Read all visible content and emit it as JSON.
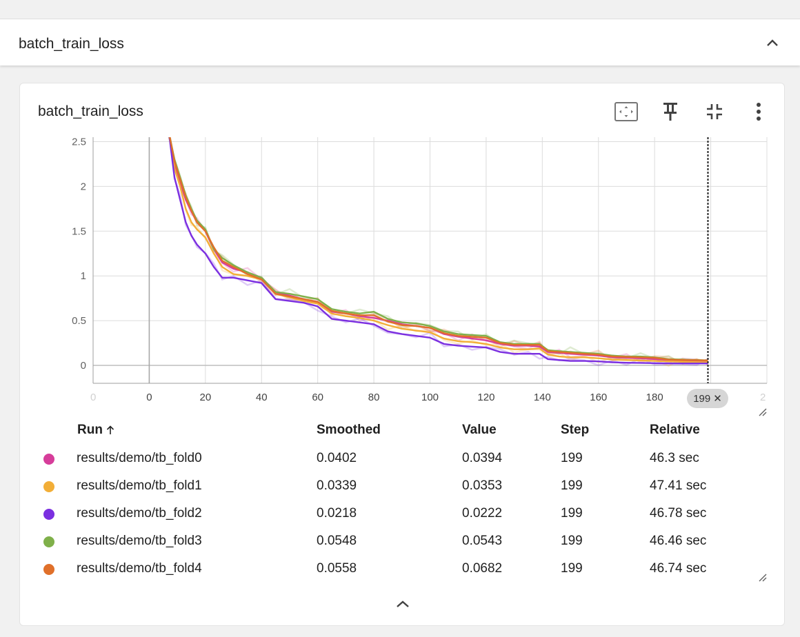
{
  "section": {
    "title": "batch_train_loss"
  },
  "card": {
    "title": "batch_train_loss",
    "toolbar_icons": [
      "fit-to-data-icon",
      "pin-icon",
      "collapse-chart-icon",
      "more-vert-icon"
    ]
  },
  "chart_data": {
    "type": "line",
    "xlim": [
      -20,
      220
    ],
    "ylim": [
      -0.2,
      2.55
    ],
    "x_ticks": [
      0,
      20,
      40,
      60,
      80,
      100,
      120,
      140,
      160,
      180
    ],
    "x_ticks_faint": [
      "0",
      "2"
    ],
    "y_ticks": [
      0,
      0.5,
      1,
      1.5,
      2,
      2.5
    ],
    "y_tick_labels": [
      "0",
      "0.5",
      "1",
      "1.5",
      "2",
      "2.5"
    ],
    "grid": true,
    "cursor_step": 199,
    "cursor_label": "199",
    "x_samples": [
      7,
      9,
      11,
      13,
      15,
      17,
      20,
      23,
      26,
      30,
      35,
      40,
      45,
      50,
      55,
      60,
      65,
      70,
      75,
      80,
      85,
      90,
      95,
      100,
      105,
      110,
      115,
      120,
      125,
      130,
      135,
      139,
      142,
      146,
      150,
      155,
      160,
      165,
      170,
      175,
      180,
      185,
      190,
      195,
      199
    ],
    "series": [
      {
        "name": "results/demo/tb_fold0",
        "color": "#d63d9a",
        "values": [
          2.6,
          2.25,
          2.05,
          1.85,
          1.72,
          1.6,
          1.5,
          1.3,
          1.15,
          1.08,
          1.04,
          0.98,
          0.82,
          0.78,
          0.74,
          0.7,
          0.6,
          0.58,
          0.55,
          0.53,
          0.5,
          0.46,
          0.44,
          0.42,
          0.35,
          0.32,
          0.3,
          0.28,
          0.24,
          0.22,
          0.22,
          0.21,
          0.15,
          0.14,
          0.13,
          0.12,
          0.11,
          0.09,
          0.085,
          0.08,
          0.07,
          0.06,
          0.05,
          0.045,
          0.04
        ]
      },
      {
        "name": "results/demo/tb_fold1",
        "color": "#f2ae37",
        "values": [
          2.6,
          2.2,
          2.0,
          1.75,
          1.6,
          1.52,
          1.43,
          1.25,
          1.1,
          1.02,
          1.0,
          0.96,
          0.8,
          0.76,
          0.72,
          0.69,
          0.58,
          0.55,
          0.53,
          0.5,
          0.45,
          0.41,
          0.39,
          0.37,
          0.3,
          0.27,
          0.26,
          0.24,
          0.2,
          0.18,
          0.18,
          0.19,
          0.12,
          0.1,
          0.09,
          0.09,
          0.08,
          0.065,
          0.06,
          0.055,
          0.05,
          0.045,
          0.04,
          0.036,
          0.034
        ]
      },
      {
        "name": "results/demo/tb_fold2",
        "color": "#7b2fe0",
        "values": [
          2.6,
          2.1,
          1.85,
          1.6,
          1.45,
          1.35,
          1.25,
          1.1,
          0.98,
          0.98,
          0.95,
          0.92,
          0.74,
          0.72,
          0.7,
          0.66,
          0.52,
          0.5,
          0.48,
          0.46,
          0.38,
          0.35,
          0.33,
          0.31,
          0.24,
          0.22,
          0.21,
          0.2,
          0.15,
          0.13,
          0.13,
          0.13,
          0.07,
          0.06,
          0.05,
          0.05,
          0.045,
          0.035,
          0.03,
          0.028,
          0.025,
          0.023,
          0.022,
          0.022,
          0.022
        ]
      },
      {
        "name": "results/demo/tb_fold3",
        "color": "#7fb04a",
        "values": [
          2.6,
          2.3,
          2.1,
          1.9,
          1.75,
          1.62,
          1.52,
          1.3,
          1.2,
          1.12,
          1.04,
          0.98,
          0.82,
          0.8,
          0.77,
          0.74,
          0.63,
          0.6,
          0.58,
          0.6,
          0.52,
          0.48,
          0.47,
          0.44,
          0.38,
          0.35,
          0.34,
          0.33,
          0.26,
          0.24,
          0.24,
          0.24,
          0.17,
          0.16,
          0.15,
          0.14,
          0.13,
          0.11,
          0.1,
          0.1,
          0.09,
          0.07,
          0.065,
          0.06,
          0.055
        ]
      },
      {
        "name": "results/demo/tb_fold4",
        "color": "#e0702a",
        "values": [
          2.6,
          2.28,
          2.08,
          1.88,
          1.73,
          1.6,
          1.5,
          1.32,
          1.17,
          1.1,
          1.02,
          0.96,
          0.8,
          0.77,
          0.74,
          0.71,
          0.61,
          0.58,
          0.56,
          0.56,
          0.49,
          0.45,
          0.44,
          0.42,
          0.36,
          0.33,
          0.32,
          0.31,
          0.25,
          0.23,
          0.23,
          0.23,
          0.16,
          0.15,
          0.14,
          0.13,
          0.12,
          0.1,
          0.095,
          0.09,
          0.085,
          0.065,
          0.06,
          0.058,
          0.056
        ]
      }
    ]
  },
  "table": {
    "headers": {
      "run": "Run",
      "smoothed": "Smoothed",
      "value": "Value",
      "step": "Step",
      "relative": "Relative"
    },
    "rows": [
      {
        "run": "results/demo/tb_fold0",
        "color": "#d63d9a",
        "smoothed": "0.0402",
        "value": "0.0394",
        "step": "199",
        "relative": "46.3 sec"
      },
      {
        "run": "results/demo/tb_fold1",
        "color": "#f2ae37",
        "smoothed": "0.0339",
        "value": "0.0353",
        "step": "199",
        "relative": "47.41 sec"
      },
      {
        "run": "results/demo/tb_fold2",
        "color": "#7b2fe0",
        "smoothed": "0.0218",
        "value": "0.0222",
        "step": "199",
        "relative": "46.78 sec"
      },
      {
        "run": "results/demo/tb_fold3",
        "color": "#7fb04a",
        "smoothed": "0.0548",
        "value": "0.0543",
        "step": "199",
        "relative": "46.46 sec"
      },
      {
        "run": "results/demo/tb_fold4",
        "color": "#e0702a",
        "smoothed": "0.0558",
        "value": "0.0682",
        "step": "199",
        "relative": "46.74 sec"
      }
    ]
  }
}
